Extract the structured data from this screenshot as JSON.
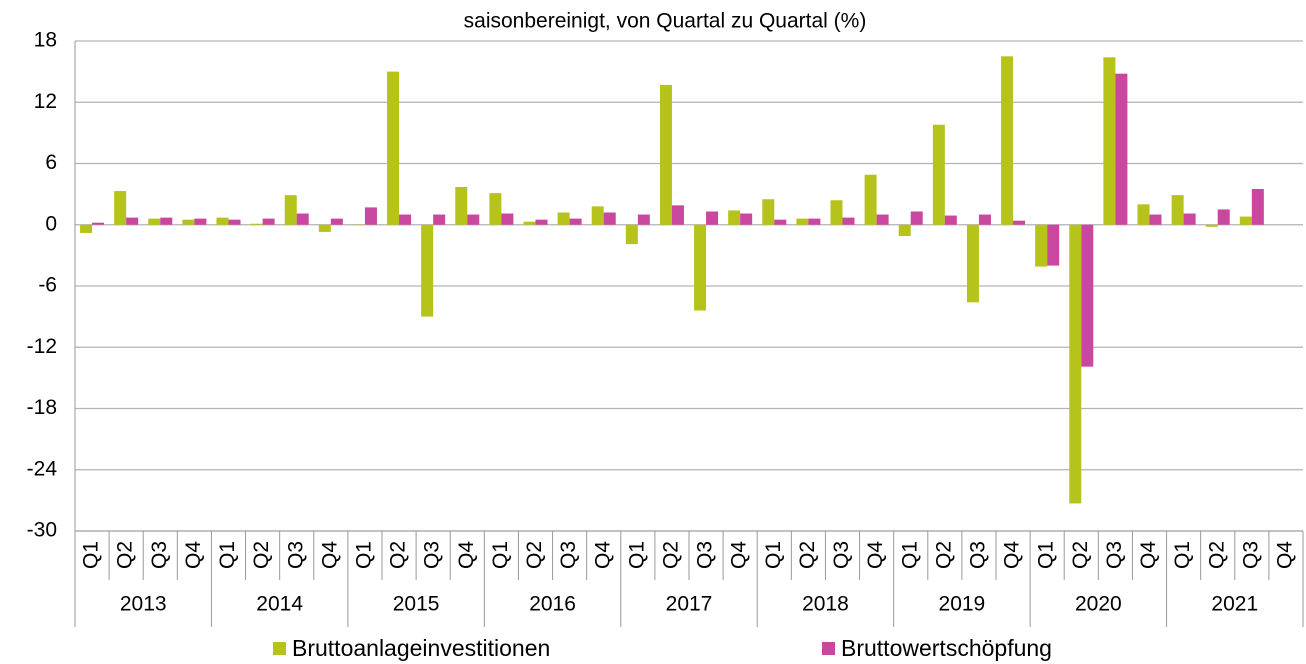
{
  "chart_data": {
    "type": "bar",
    "title": "saisonbereinigt, von Quartal zu Quartal (%)",
    "categories": [
      "Q1",
      "Q2",
      "Q3",
      "Q4",
      "Q1",
      "Q2",
      "Q3",
      "Q4",
      "Q1",
      "Q2",
      "Q3",
      "Q4",
      "Q1",
      "Q2",
      "Q3",
      "Q4",
      "Q1",
      "Q2",
      "Q3",
      "Q4",
      "Q1",
      "Q2",
      "Q3",
      "Q4",
      "Q1",
      "Q2",
      "Q3",
      "Q4",
      "Q1",
      "Q2",
      "Q3",
      "Q4",
      "Q1",
      "Q2",
      "Q3",
      "Q4"
    ],
    "years": [
      "2013",
      "2014",
      "2015",
      "2016",
      "2017",
      "2018",
      "2019",
      "2020",
      "2021"
    ],
    "series": [
      {
        "name": "Bruttoanlageinvestitionen",
        "color": "#b5c31a",
        "values": [
          -0.8,
          3.3,
          0.6,
          0.5,
          0.7,
          0.1,
          2.9,
          -0.7,
          0.0,
          15.0,
          -9.0,
          3.7,
          3.1,
          0.3,
          1.2,
          1.8,
          -1.9,
          13.7,
          -8.4,
          1.4,
          2.5,
          0.6,
          2.4,
          4.9,
          -1.1,
          9.8,
          -7.6,
          16.5,
          -4.1,
          -27.3,
          16.4,
          2.0,
          2.9,
          -0.2,
          0.8,
          null
        ]
      },
      {
        "name": "Bruttowertschöpfung",
        "color": "#c9479f",
        "values": [
          0.2,
          0.7,
          0.7,
          0.6,
          0.5,
          0.6,
          1.1,
          0.6,
          1.7,
          1.0,
          1.0,
          1.0,
          1.1,
          0.5,
          0.6,
          1.2,
          1.0,
          1.9,
          1.3,
          1.1,
          0.5,
          0.6,
          0.7,
          1.0,
          1.3,
          0.9,
          1.0,
          0.4,
          -4.0,
          -13.9,
          14.8,
          1.0,
          1.1,
          1.5,
          3.5,
          null
        ]
      }
    ],
    "ylim": [
      -30,
      18
    ],
    "yticks": [
      -30,
      -24,
      -18,
      -12,
      -6,
      0,
      6,
      12,
      18
    ],
    "grid": true,
    "legend": "bottom"
  }
}
